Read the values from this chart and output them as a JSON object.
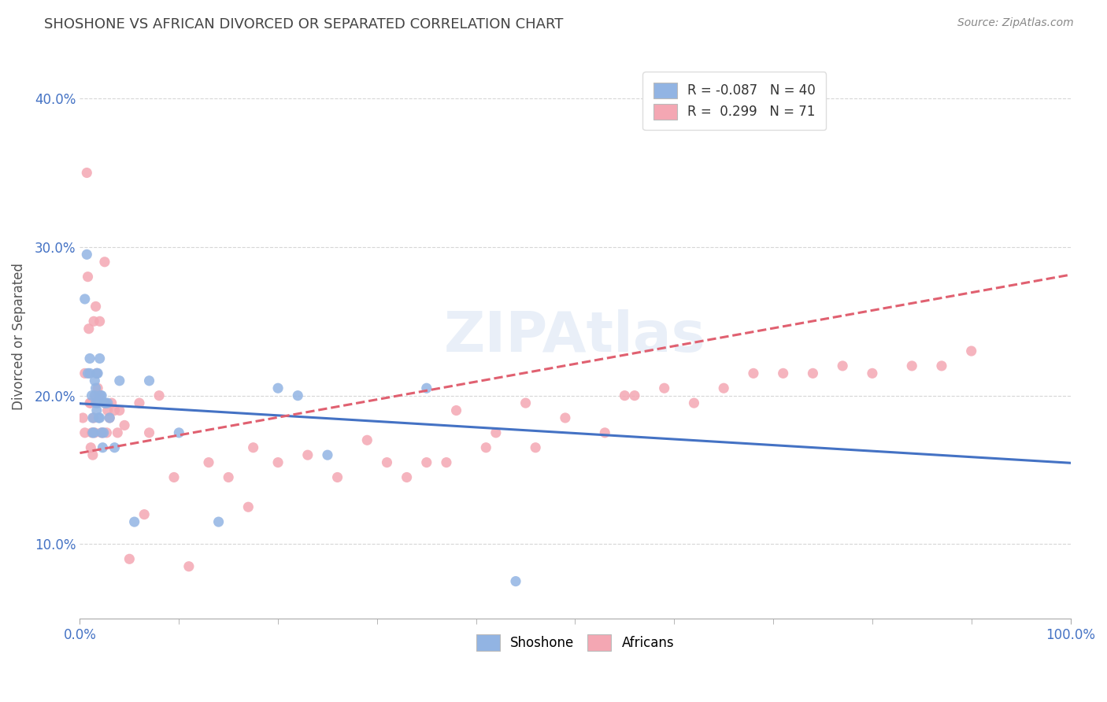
{
  "title": "SHOSHONE VS AFRICAN DIVORCED OR SEPARATED CORRELATION CHART",
  "source_text": "Source: ZipAtlas.com",
  "ylabel": "Divorced or Separated",
  "xlim": [
    0.0,
    1.0
  ],
  "ylim": [
    0.05,
    0.43
  ],
  "y_tick_values": [
    0.1,
    0.2,
    0.3,
    0.4
  ],
  "y_tick_labels": [
    "10.0%",
    "20.0%",
    "30.0%",
    "40.0%"
  ],
  "color_shoshone": "#92B4E3",
  "color_africans": "#F4A7B3",
  "line_color_shoshone": "#4472C4",
  "line_color_africans": "#E06070",
  "background_color": "#FFFFFF",
  "grid_color": "#CCCCCC",
  "shoshone_x": [
    0.005,
    0.007,
    0.008,
    0.01,
    0.01,
    0.012,
    0.013,
    0.013,
    0.014,
    0.015,
    0.015,
    0.016,
    0.016,
    0.017,
    0.017,
    0.018,
    0.018,
    0.019,
    0.02,
    0.02,
    0.021,
    0.022,
    0.022,
    0.023,
    0.024,
    0.025,
    0.026,
    0.028,
    0.03,
    0.035,
    0.04,
    0.055,
    0.07,
    0.1,
    0.14,
    0.2,
    0.22,
    0.25,
    0.35,
    0.44
  ],
  "shoshone_y": [
    0.265,
    0.295,
    0.215,
    0.215,
    0.225,
    0.2,
    0.175,
    0.185,
    0.175,
    0.2,
    0.21,
    0.195,
    0.205,
    0.19,
    0.215,
    0.195,
    0.215,
    0.185,
    0.185,
    0.225,
    0.2,
    0.2,
    0.175,
    0.165,
    0.175,
    0.195,
    0.195,
    0.195,
    0.185,
    0.165,
    0.21,
    0.115,
    0.21,
    0.175,
    0.115,
    0.205,
    0.2,
    0.16,
    0.205,
    0.075
  ],
  "africans_x": [
    0.003,
    0.005,
    0.005,
    0.007,
    0.008,
    0.009,
    0.01,
    0.011,
    0.011,
    0.012,
    0.013,
    0.014,
    0.014,
    0.015,
    0.016,
    0.016,
    0.017,
    0.018,
    0.019,
    0.02,
    0.022,
    0.023,
    0.025,
    0.025,
    0.027,
    0.028,
    0.03,
    0.032,
    0.035,
    0.038,
    0.04,
    0.045,
    0.05,
    0.06,
    0.065,
    0.07,
    0.08,
    0.095,
    0.11,
    0.13,
    0.15,
    0.175,
    0.2,
    0.23,
    0.26,
    0.29,
    0.33,
    0.37,
    0.41,
    0.45,
    0.49,
    0.53,
    0.56,
    0.59,
    0.62,
    0.65,
    0.68,
    0.71,
    0.74,
    0.77,
    0.8,
    0.84,
    0.87,
    0.9,
    0.17,
    0.31,
    0.35,
    0.38,
    0.42,
    0.46,
    0.55
  ],
  "africans_y": [
    0.185,
    0.175,
    0.215,
    0.35,
    0.28,
    0.245,
    0.195,
    0.165,
    0.195,
    0.175,
    0.16,
    0.185,
    0.25,
    0.175,
    0.2,
    0.26,
    0.215,
    0.205,
    0.2,
    0.25,
    0.175,
    0.175,
    0.195,
    0.29,
    0.175,
    0.19,
    0.185,
    0.195,
    0.19,
    0.175,
    0.19,
    0.18,
    0.09,
    0.195,
    0.12,
    0.175,
    0.2,
    0.145,
    0.085,
    0.155,
    0.145,
    0.165,
    0.155,
    0.16,
    0.145,
    0.17,
    0.145,
    0.155,
    0.165,
    0.195,
    0.185,
    0.175,
    0.2,
    0.205,
    0.195,
    0.205,
    0.215,
    0.215,
    0.215,
    0.22,
    0.215,
    0.22,
    0.22,
    0.23,
    0.125,
    0.155,
    0.155,
    0.19,
    0.175,
    0.165,
    0.2
  ]
}
